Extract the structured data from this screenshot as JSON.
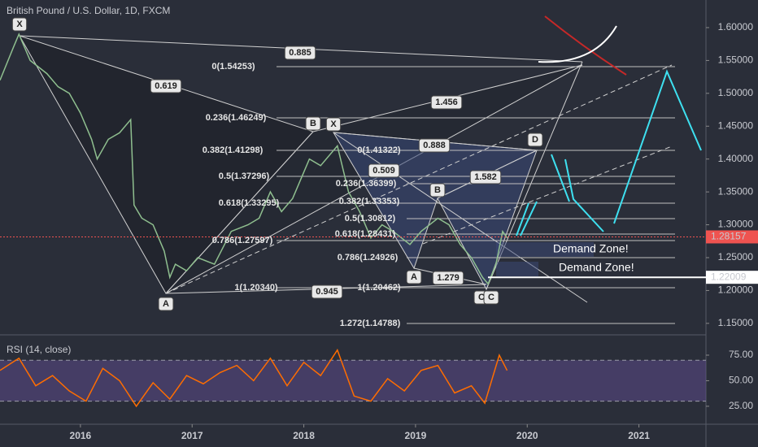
{
  "chart_data": [
    {
      "type": "line",
      "title": "British Pound / U.S. Dollar, 1D, FXCM",
      "color": "#8fbf8f",
      "x": [
        2015.28,
        2015.4,
        2015.45,
        2015.55,
        2015.7,
        2015.8,
        2015.9,
        2016.0,
        2016.1,
        2016.15,
        2016.25,
        2016.35,
        2016.45,
        2016.48,
        2016.55,
        2016.65,
        2016.75,
        2016.8,
        2016.85,
        2016.95,
        2017.05,
        2017.2,
        2017.35,
        2017.5,
        2017.6,
        2017.7,
        2017.8,
        2017.9,
        2018.05,
        2018.15,
        2018.3,
        2018.4,
        2018.5,
        2018.6,
        2018.7,
        2018.8,
        2018.95,
        2019.05,
        2019.2,
        2019.3,
        2019.4,
        2019.5,
        2019.6,
        2019.65,
        2019.72,
        2019.78,
        2019.82
      ],
      "values": [
        1.52,
        1.57,
        1.59,
        1.55,
        1.53,
        1.51,
        1.5,
        1.47,
        1.43,
        1.4,
        1.43,
        1.44,
        1.46,
        1.33,
        1.31,
        1.3,
        1.26,
        1.22,
        1.24,
        1.23,
        1.25,
        1.24,
        1.29,
        1.3,
        1.31,
        1.35,
        1.32,
        1.34,
        1.4,
        1.39,
        1.42,
        1.35,
        1.32,
        1.28,
        1.3,
        1.29,
        1.27,
        1.29,
        1.31,
        1.3,
        1.27,
        1.25,
        1.22,
        1.21,
        1.24,
        1.29,
        1.28
      ],
      "xlim": [
        2015.28,
        2021.6
      ],
      "xticks": [
        2016,
        2017,
        2018,
        2019,
        2020,
        2021
      ],
      "ylim": [
        1.135,
        1.642
      ],
      "yticks": [
        {
          "value": 1.15,
          "label": "1.15000"
        },
        {
          "value": 1.2,
          "label": "1.20000"
        },
        {
          "value": 1.25,
          "label": "1.25000"
        },
        {
          "value": 1.3,
          "label": "1.30000"
        },
        {
          "value": 1.35,
          "label": "1.35000"
        },
        {
          "value": 1.4,
          "label": "1.40000"
        },
        {
          "value": 1.45,
          "label": "1.45000"
        },
        {
          "value": 1.5,
          "label": "1.50000"
        },
        {
          "value": 1.55,
          "label": "1.55000"
        },
        {
          "value": 1.6,
          "label": "1.60000"
        }
      ],
      "price_markers": [
        1.28157,
        1.22009
      ],
      "annotations": [
        "X",
        "0.885",
        "0(1.54253)",
        "0.619",
        "1.456",
        "0.236(1.46249)",
        "B",
        "X",
        "0.382(1.41298)",
        "0(1.41322)",
        "0.888",
        "D",
        "0.509",
        "0.5(1.37296)",
        "0.236(1.36399)",
        "1.582",
        "B",
        "0.618(1.33295)",
        "0.382(1.33353)",
        "0.5(1.30812)",
        "0.618(1.28431)",
        "0.786(1.27597)",
        "Demand Zone!",
        "0.786(1.24926)",
        "Demand Zone!",
        "A",
        "1.279",
        "1(1.20340)",
        "0.945",
        "1(1.20462)",
        "C",
        "C",
        "A",
        "1.272(1.14788)"
      ]
    },
    {
      "type": "line",
      "title": "RSI (14, close)",
      "color": "#ff6d00",
      "x": [
        2015.28,
        2015.45,
        2015.6,
        2015.75,
        2015.9,
        2016.05,
        2016.2,
        2016.35,
        2016.5,
        2016.65,
        2016.8,
        2016.95,
        2017.1,
        2017.25,
        2017.4,
        2017.55,
        2017.7,
        2017.85,
        2018.0,
        2018.15,
        2018.3,
        2018.45,
        2018.6,
        2018.75,
        2018.9,
        2019.05,
        2019.2,
        2019.35,
        2019.5,
        2019.62,
        2019.75,
        2019.82
      ],
      "values": [
        60,
        72,
        45,
        55,
        40,
        30,
        62,
        50,
        25,
        48,
        32,
        55,
        47,
        58,
        65,
        50,
        72,
        45,
        68,
        55,
        80,
        35,
        30,
        52,
        40,
        60,
        65,
        38,
        45,
        28,
        75,
        60
      ],
      "xlim": [
        2015.28,
        2021.6
      ],
      "ylim": [
        9,
        88.5
      ],
      "yticks": [
        {
          "value": 25,
          "label": "25.00"
        },
        {
          "value": 50,
          "label": "50.00"
        },
        {
          "value": 75,
          "label": "75.00"
        }
      ],
      "bands": [
        30,
        70
      ]
    }
  ]
}
